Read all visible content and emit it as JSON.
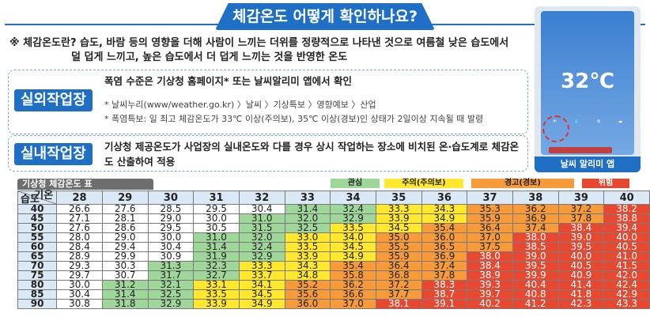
{
  "banner": "체감온도 어떻게 확인하나요?",
  "note": {
    "line1": "※ 체감온도란? 습도, 바람 등의 영향을 더해 사람이 느끼는 더위를 정량적으로 나타낸 것으로 여름철 낮은 습도에서",
    "line2": "덜 덥게 느끼고, 높은 습도에서 더 덥게 느끼는 것을 반영한 온도"
  },
  "outdoor": {
    "tag": "실외작업장",
    "head": "폭염 수준은 기상청 홈페이지* 또는 날씨알리미 앱에서 확인",
    "b1": "* 날씨누리(www/weather.go.kr) 〉날씨 〉기상특보 〉영향예보 〉산업",
    "b2": "* 폭염특보: 일 최고 체감온도가 33℃ 이상(주의보), 35℃ 이상(경보)인 상태가 2일이상 지속될 때 발령"
  },
  "indoor": {
    "tag": "실내작업장",
    "text": "기상청 제공온도가 사업장의 실내온도와 다를 경우 상시 작업하는 장소에 비치된 온·습도계로 체감온도 산출하여 적용"
  },
  "phone": {
    "temp": "32℃",
    "label": "날씨 알리미 앱"
  },
  "legend": {
    "lv1": "관심",
    "lv2": "주의(주의보)",
    "lv3": "경고(경보)",
    "lv4": "위험"
  },
  "table": {
    "title": "기상청 체감온도 표",
    "corner_top": "기온",
    "corner_bottom": "습도",
    "temps": [
      "28",
      "29",
      "30",
      "31",
      "32",
      "33",
      "34",
      "35",
      "36",
      "37",
      "38",
      "39",
      "40"
    ],
    "rows": [
      {
        "h": "40",
        "v": [
          "26.6",
          "27.6",
          "28.5",
          "29.5",
          "30.4",
          "31.4",
          "32.4",
          "33.3",
          "34.3",
          "35.3",
          "36.2",
          "37.2",
          "38.2"
        ]
      },
      {
        "h": "45",
        "v": [
          "27.1",
          "28.1",
          "29.0",
          "30.0",
          "31.0",
          "32.0",
          "32.9",
          "33.9",
          "34.9",
          "35.9",
          "36.9",
          "37.8",
          "38.8"
        ]
      },
      {
        "h": "50",
        "v": [
          "27.6",
          "28.6",
          "29.5",
          "30.5",
          "31.5",
          "32.5",
          "33.5",
          "34.5",
          "35.4",
          "36.4",
          "37.4",
          "38.4",
          "39.4"
        ]
      },
      {
        "h": "55",
        "v": [
          "28.0",
          "29.0",
          "30.0",
          "31.0",
          "32.0",
          "33.0",
          "34.0",
          "35.0",
          "36.0",
          "37.0",
          "38.0",
          "39.0",
          "40.0"
        ]
      },
      {
        "h": "60",
        "v": [
          "28.4",
          "29.4",
          "30.4",
          "31.4",
          "32.4",
          "33.5",
          "34.5",
          "35.5",
          "36.5",
          "37.5",
          "38.5",
          "39.5",
          "40.5"
        ]
      },
      {
        "h": "65",
        "v": [
          "28.9",
          "29.9",
          "30.9",
          "31.9",
          "32.9",
          "33.9",
          "34.9",
          "35.9",
          "36.9",
          "38.0",
          "39.0",
          "40.0",
          "41.0"
        ]
      },
      {
        "h": "70",
        "v": [
          "29.3",
          "30.3",
          "31.3",
          "32.3",
          "33.3",
          "34.3",
          "35.4",
          "36.4",
          "37.4",
          "38.4",
          "39.5",
          "40.5",
          "41.5"
        ]
      },
      {
        "h": "75",
        "v": [
          "29.7",
          "30.7",
          "31.7",
          "32.7",
          "33.7",
          "34.8",
          "35.8",
          "36.8",
          "37.8",
          "38.9",
          "39.9",
          "40.9",
          "42.0"
        ]
      },
      {
        "h": "80",
        "v": [
          "30.0",
          "31.2",
          "32.1",
          "33.1",
          "34.1",
          "35.2",
          "36.2",
          "37.2",
          "38.3",
          "39.3",
          "40.4",
          "41.4",
          "42.4"
        ]
      },
      {
        "h": "85",
        "v": [
          "30.4",
          "31.4",
          "32.5",
          "33.5",
          "34.5",
          "35.6",
          "36.6",
          "37.7",
          "38.7",
          "39.7",
          "40.8",
          "41.8",
          "42.9"
        ]
      },
      {
        "h": "90",
        "v": [
          "30.8",
          "31.8",
          "32.9",
          "33.9",
          "34.9",
          "36.0",
          "37.0",
          "38.1",
          "39.1",
          "40.2",
          "41.2",
          "42.3",
          "43.3"
        ]
      }
    ]
  },
  "colors": {
    "brand": "#1f6fc5",
    "lv1": "#9fd79a",
    "lv2": "#ffe82e",
    "lv3": "#f79b3a",
    "lv4": "#e84830"
  }
}
